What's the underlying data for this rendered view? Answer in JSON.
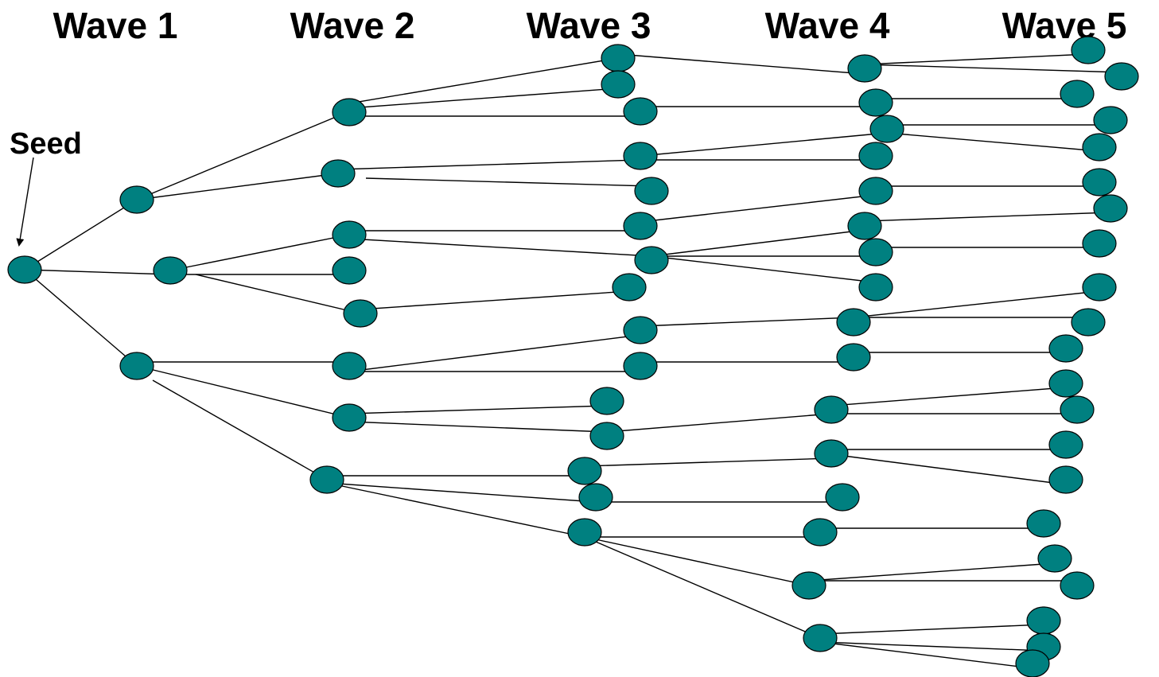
{
  "waves": {
    "w1": "Wave 1",
    "w2": "Wave 2",
    "w3": "Wave 3",
    "w4": "Wave 4",
    "w5": "Wave 5"
  },
  "seed_label": "Seed",
  "colors": {
    "node_fill": "#008080",
    "node_stroke": "#000000",
    "edge": "#000000",
    "text": "#000000",
    "background": "#ffffff"
  }
}
